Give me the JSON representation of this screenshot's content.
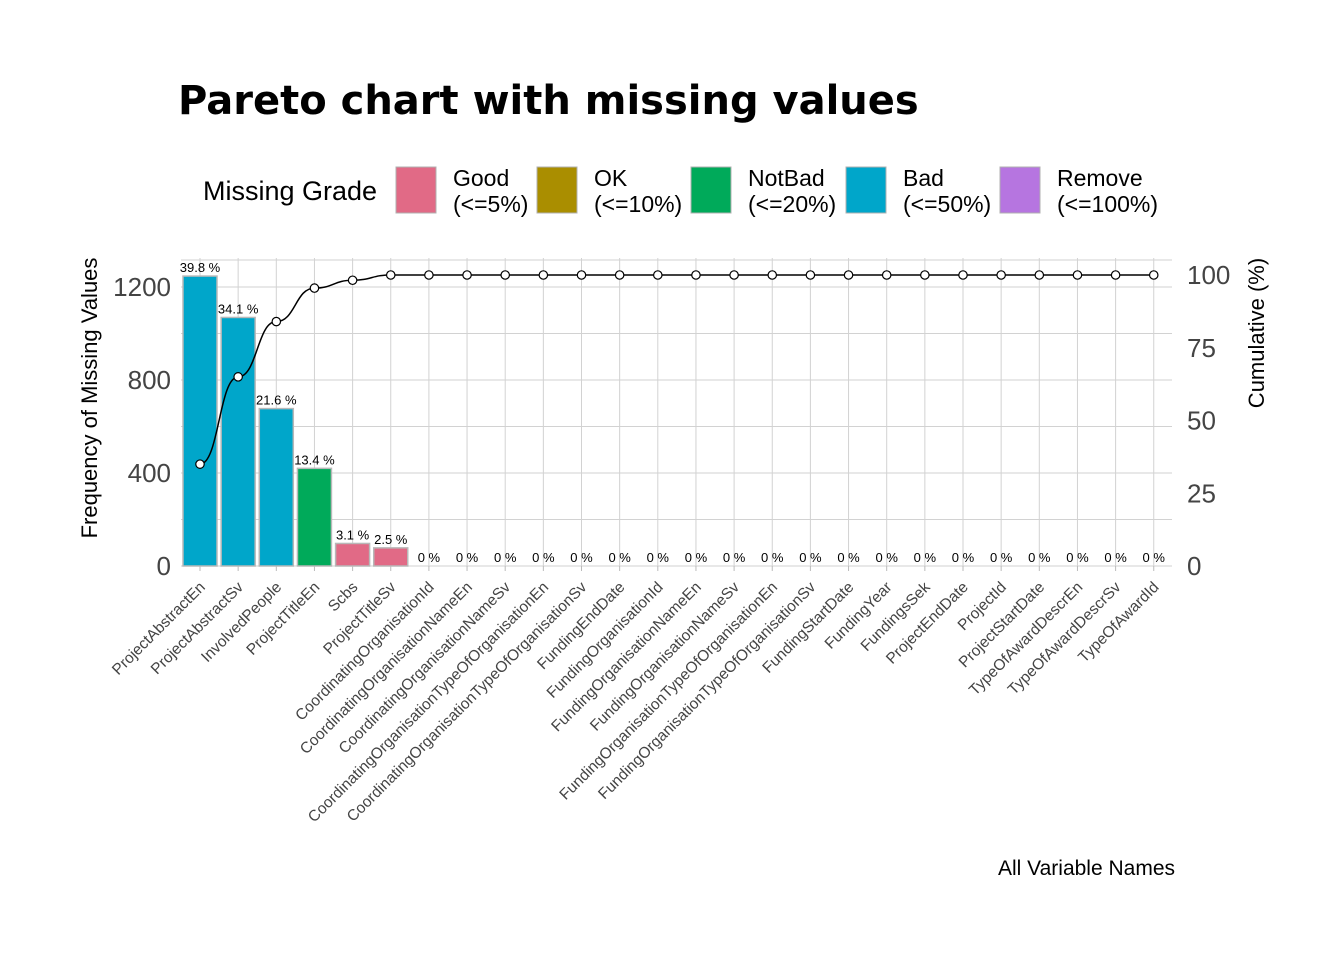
{
  "chart_data": {
    "type": "bar",
    "title": "Pareto chart with missing values",
    "ylabel": "Frequency of Missing Values",
    "y2label": "Cumulative (%)",
    "caption": "All Variable Names",
    "ylim": [
      0,
      1300
    ],
    "y_ticks": [
      0,
      400,
      800,
      1200
    ],
    "y2lim": [
      0,
      100
    ],
    "y2_ticks": [
      0,
      25,
      50,
      75,
      100
    ],
    "legend": {
      "title": "Missing Grade",
      "position": "top",
      "items": [
        {
          "label_line1": "Good",
          "label_line2": "(<=5%)",
          "color": "#E16A86"
        },
        {
          "label_line1": "OK",
          "label_line2": "(<=10%)",
          "color": "#AA8E00"
        },
        {
          "label_line1": "NotBad",
          "label_line2": "(<=20%)",
          "color": "#00AA5A"
        },
        {
          "label_line1": "Bad",
          "label_line2": "(<=50%)",
          "color": "#00A6CA"
        },
        {
          "label_line1": "Remove",
          "label_line2": "(<=100%)",
          "color": "#B675E0"
        }
      ]
    },
    "categories": [
      "ProjectAbstractEn",
      "ProjectAbstractSv",
      "InvolvedPeople",
      "ProjectTitleEn",
      "Scbs",
      "ProjectTitleSv",
      "CoordinatingOrganisationId",
      "CoordinatingOrganisationNameEn",
      "CoordinatingOrganisationNameSv",
      "CoordinatingOrganisationTypeOfOrganisationEn",
      "CoordinatingOrganisationTypeOfOrganisationSv",
      "FundingEndDate",
      "FundingOrganisationId",
      "FundingOrganisationNameEn",
      "FundingOrganisationNameSv",
      "FundingOrganisationTypeOfOrganisationEn",
      "FundingOrganisationTypeOfOrganisationSv",
      "FundingStartDate",
      "FundingYear",
      "FundingsSek",
      "ProjectEndDate",
      "ProjectId",
      "ProjectStartDate",
      "TypeOfAwardDescrEn",
      "TypeOfAwardDescrSv",
      "TypeOfAwardId"
    ],
    "values": [
      1247,
      1069,
      677,
      420,
      97,
      78,
      0,
      0,
      0,
      0,
      0,
      0,
      0,
      0,
      0,
      0,
      0,
      0,
      0,
      0,
      0,
      0,
      0,
      0,
      0,
      0
    ],
    "labels": [
      "39.8 %",
      "34.1 %",
      "21.6 %",
      "13.4 %",
      "3.1 %",
      "2.5 %",
      "0 %",
      "0 %",
      "0 %",
      "0 %",
      "0 %",
      "0 %",
      "0 %",
      "0 %",
      "0 %",
      "0 %",
      "0 %",
      "0 %",
      "0 %",
      "0 %",
      "0 %",
      "0 %",
      "0 %",
      "0 %",
      "0 %",
      "0 %"
    ],
    "grades": [
      "Bad",
      "Bad",
      "Bad",
      "NotBad",
      "Good",
      "Good",
      "Good",
      "Good",
      "Good",
      "Good",
      "Good",
      "Good",
      "Good",
      "Good",
      "Good",
      "Good",
      "Good",
      "Good",
      "Good",
      "Good",
      "Good",
      "Good",
      "Good",
      "Good",
      "Good",
      "Good"
    ],
    "cumulative": [
      35,
      65,
      84,
      95.5,
      98.2,
      100,
      100,
      100,
      100,
      100,
      100,
      100,
      100,
      100,
      100,
      100,
      100,
      100,
      100,
      100,
      100,
      100,
      100,
      100,
      100,
      100
    ],
    "grid": true
  }
}
